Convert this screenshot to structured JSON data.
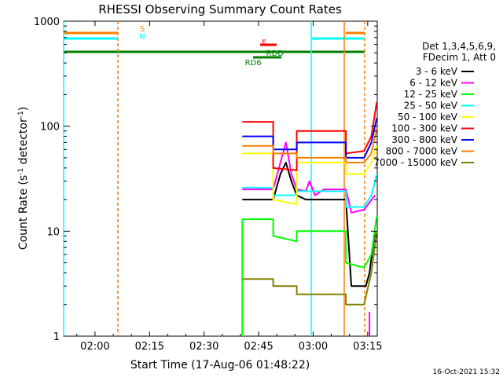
{
  "chart_data": {
    "type": "line",
    "title": "RHESSI Observing Summary Count Rates",
    "xlabel": "Start Time (17-Aug-06 01:48:22)",
    "ylabel_parts": [
      "Count Rate (s",
      "-1",
      " detector",
      "-1",
      ")"
    ],
    "y_scale": "log",
    "ylim": [
      1,
      1000
    ],
    "xlim_minutes": [
      -8.37,
      37.63
    ],
    "x_ticks": [
      {
        "t": -0.0,
        "label": "02:00"
      },
      {
        "t": 15,
        "label": "02:15"
      },
      {
        "t": 30,
        "label": "02:30"
      },
      {
        "t": 45,
        "label": "02:45"
      },
      {
        "t": 60,
        "label": "03:00"
      },
      {
        "t": 75,
        "label": "03:15"
      }
    ],
    "y_ticks": [
      {
        "v": 1,
        "label": "1"
      },
      {
        "v": 10,
        "label": "10"
      },
      {
        "v": 100,
        "label": "100"
      },
      {
        "v": 1000,
        "label": "1000"
      }
    ],
    "legend_header": [
      "Det 1,3,4,5,6,9,",
      "FDecim 1, Att 0"
    ],
    "legend_position": "right",
    "series": [
      {
        "name": "3 - 6 keV",
        "color": "#000000",
        "segments": [
          [
            [
              40.5,
              20
            ],
            [
              49.0,
              20
            ],
            [
              51.0,
              35
            ],
            [
              52.5,
              45
            ],
            [
              54.0,
              30
            ],
            [
              55.5,
              22
            ],
            [
              58.0,
              20
            ],
            [
              63.0,
              20
            ],
            [
              69.0,
              20
            ],
            [
              70.5,
              3
            ],
            [
              74.5,
              3
            ],
            [
              75.5,
              4
            ],
            [
              77.0,
              10
            ]
          ]
        ]
      },
      {
        "name": "6 - 12 keV",
        "color": "#ff00ff",
        "segments": [
          [
            [
              40.5,
              25
            ],
            [
              49.0,
              25
            ],
            [
              51.0,
              45
            ],
            [
              52.5,
              70
            ],
            [
              54.0,
              35
            ],
            [
              55.5,
              25
            ],
            [
              58.0,
              24
            ],
            [
              59.0,
              30
            ],
            [
              60.5,
              22
            ],
            [
              63.0,
              25
            ],
            [
              69.0,
              25
            ],
            [
              70.5,
              15
            ],
            [
              74.0,
              16
            ],
            [
              77.0,
              22
            ]
          ],
          [
            [
              75.5,
              1
            ],
            [
              75.5,
              1.7
            ]
          ]
        ]
      },
      {
        "name": "12 - 25 keV",
        "color": "#00ff00",
        "segments": [
          [
            [
              40.5,
              13
            ],
            [
              49.0,
              13
            ],
            [
              49.0,
              9
            ],
            [
              55.5,
              8
            ],
            [
              55.5,
              10
            ],
            [
              69.0,
              10
            ],
            [
              69.0,
              5
            ],
            [
              74.0,
              4.5
            ],
            [
              76.0,
              6
            ],
            [
              77.5,
              14
            ]
          ],
          [
            [
              40.5,
              1
            ],
            [
              40.5,
              13
            ]
          ]
        ]
      },
      {
        "name": "25 - 50 keV",
        "color": "#00ffff",
        "segments": [
          [
            [
              40.5,
              26
            ],
            [
              49.0,
              26
            ],
            [
              49.0,
              22
            ],
            [
              55.5,
              22
            ],
            [
              55.5,
              24
            ],
            [
              69.0,
              24
            ],
            [
              69.0,
              17
            ],
            [
              74.0,
              17
            ],
            [
              76.0,
              22
            ],
            [
              77.5,
              35
            ]
          ]
        ]
      },
      {
        "name": "50 - 100 keV",
        "color": "#ffff00",
        "segments": [
          [
            [
              40.5,
              55
            ],
            [
              49.0,
              55
            ],
            [
              49.0,
              20
            ],
            [
              55.5,
              18
            ],
            [
              55.5,
              45
            ],
            [
              69.0,
              45
            ],
            [
              69.0,
              35
            ],
            [
              74.0,
              35
            ],
            [
              76.0,
              45
            ],
            [
              77.5,
              65
            ]
          ]
        ]
      },
      {
        "name": "100 - 300 keV",
        "color": "#ff0000",
        "segments": [
          [
            [
              40.5,
              110
            ],
            [
              49.0,
              110
            ],
            [
              49.0,
              40
            ],
            [
              55.5,
              38
            ],
            [
              55.5,
              90
            ],
            [
              69.0,
              90
            ],
            [
              69.0,
              55
            ],
            [
              74.0,
              58
            ],
            [
              76.0,
              80
            ],
            [
              77.5,
              170
            ]
          ]
        ]
      },
      {
        "name": "300 - 800 keV",
        "color": "#0000ff",
        "segments": [
          [
            [
              40.5,
              80
            ],
            [
              49.0,
              80
            ],
            [
              49.0,
              60
            ],
            [
              55.5,
              60
            ],
            [
              55.5,
              70
            ],
            [
              69.0,
              70
            ],
            [
              69.0,
              50
            ],
            [
              74.0,
              50
            ],
            [
              76.0,
              70
            ],
            [
              77.5,
              120
            ]
          ]
        ]
      },
      {
        "name": "800 - 7000 keV",
        "color": "#ff7f00",
        "segments": [
          [
            [
              40.5,
              65
            ],
            [
              49.0,
              65
            ],
            [
              49.0,
              55
            ],
            [
              55.5,
              55
            ],
            [
              55.5,
              50
            ],
            [
              69.0,
              50
            ],
            [
              69.0,
              45
            ],
            [
              74.0,
              45
            ],
            [
              76.0,
              55
            ],
            [
              77.5,
              95
            ]
          ]
        ]
      },
      {
        "name": "7000 - 15000 keV",
        "color": "#808000",
        "segments": [
          [
            [
              40.5,
              3.5
            ],
            [
              49.0,
              3.5
            ],
            [
              49.0,
              3
            ],
            [
              55.5,
              3
            ],
            [
              55.5,
              2.5
            ],
            [
              69.0,
              2.5
            ],
            [
              69.0,
              2
            ],
            [
              74.0,
              2
            ],
            [
              76.0,
              4
            ],
            [
              77.5,
              10
            ]
          ]
        ]
      }
    ],
    "annotations": [
      {
        "label": "S",
        "color": "#ff7f00",
        "t": 13,
        "v": 800
      },
      {
        "label": "N",
        "color": "#00ffff",
        "t": 13,
        "v": 680
      },
      {
        "label": "F",
        "color": "#ff0000",
        "t": 46.5,
        "v": 590
      },
      {
        "label": "RDD",
        "color": "#008000",
        "t": 49.5,
        "v": 470
      },
      {
        "label": "RD6",
        "color": "#008000",
        "t": 43.5,
        "v": 380
      }
    ],
    "timestamp": "16-Oct-2021 15:32"
  }
}
